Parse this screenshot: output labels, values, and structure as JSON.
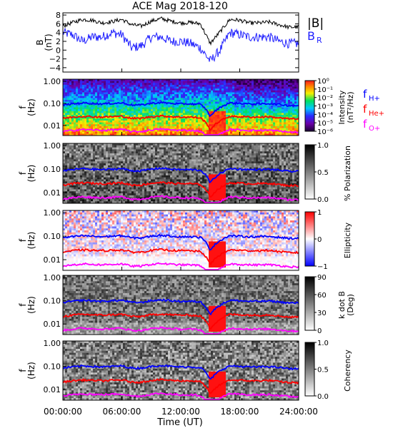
{
  "title": "ACE Mag 2018-120",
  "x_axis": {
    "label": "Time (UT)",
    "tick_labels": [
      "00:00:00",
      "06:00:00",
      "12:00:00",
      "18:00:00",
      "24:00:00"
    ],
    "range_hours": [
      0,
      24
    ]
  },
  "colors": {
    "B_total": "#000000",
    "B_R": "#1f1fff",
    "f_Hplus": "#0000ff",
    "f_Heplus": "#ff0000",
    "f_Oplus": "#ff00ff"
  },
  "panels": [
    {
      "id": "b-field",
      "ylabel_lines": [
        "B",
        "(nT)"
      ],
      "ylim": [
        -5,
        8.5
      ],
      "yticks": [
        "8",
        "6",
        "4",
        "2",
        "0",
        "−2",
        "−4"
      ],
      "legend": [
        {
          "text": "|B|",
          "color": "#000000"
        },
        {
          "text": "B",
          "sub": "R",
          "color": "#1f1fff"
        }
      ]
    },
    {
      "id": "intensity",
      "ylabel_lines": [
        "f",
        "(Hz)"
      ],
      "yticks": [
        "1.00",
        "0.10",
        "0.01"
      ],
      "colorbar_type": "rainbow",
      "colorbar_ticks": [
        "10⁰",
        "10⁻¹",
        "10⁻²",
        "10⁻³",
        "10⁻⁴",
        "10⁻⁵",
        "10⁻⁶"
      ],
      "colorbar_label_lines": [
        "Intensity",
        "(nT²/Hz)"
      ],
      "gyro_labels": [
        {
          "text": "f",
          "sub": "H+",
          "color": "#0000ff"
        },
        {
          "text": "f",
          "sub": "He+",
          "color": "#ff0000"
        },
        {
          "text": "f",
          "sub": "O+",
          "color": "#ff00ff"
        }
      ]
    },
    {
      "id": "polarization",
      "ylabel_lines": [
        "f",
        "(Hz)"
      ],
      "yticks": [
        "1.00",
        "0.10",
        "0.01"
      ],
      "colorbar_type": "gray",
      "colorbar_ticks": [
        "1.0",
        "0.5",
        "0.0"
      ],
      "colorbar_label_lines": [
        "% Polarization"
      ]
    },
    {
      "id": "ellipticity",
      "ylabel_lines": [
        "f",
        "(Hz)"
      ],
      "yticks": [
        "1.00",
        "0.10",
        "0.01"
      ],
      "colorbar_type": "bwr",
      "colorbar_ticks": [
        "1",
        "0",
        "−1"
      ],
      "colorbar_label_lines": [
        "Ellipticity"
      ]
    },
    {
      "id": "kdotb",
      "ylabel_lines": [
        "f",
        "(Hz)"
      ],
      "yticks": [
        "1.00",
        "0.10",
        "0.01"
      ],
      "colorbar_type": "gray",
      "colorbar_ticks": [
        "90",
        "60",
        "30",
        "0"
      ],
      "colorbar_label_lines": [
        "k dot B",
        "(Deg)"
      ]
    },
    {
      "id": "coherency",
      "ylabel_lines": [
        "f",
        "(Hz)"
      ],
      "yticks": [
        "1.00",
        "0.10",
        "0.01"
      ],
      "colorbar_type": "gray",
      "colorbar_ticks": [
        "1.0",
        "0.5",
        "0.0"
      ],
      "colorbar_label_lines": [
        "Coherency"
      ]
    }
  ],
  "chart_data": {
    "type": "line",
    "title": "ACE Mag 2018-120",
    "xlabel": "Time (UT)",
    "xlim_hours": [
      0,
      24
    ],
    "series": [
      {
        "name": "|B|",
        "unit": "nT",
        "x_hours": [
          0,
          1,
          2,
          3,
          4,
          5,
          6,
          7,
          8,
          9,
          10,
          11,
          12,
          13,
          14,
          15,
          16,
          17,
          18,
          19,
          20,
          21,
          22,
          23,
          24
        ],
        "values": [
          5.5,
          6.3,
          7.0,
          6.8,
          6.2,
          6.5,
          7.0,
          5.8,
          5.5,
          6.6,
          7.2,
          6.6,
          6.2,
          6.3,
          6.0,
          1.5,
          4.2,
          7.0,
          6.8,
          6.2,
          6.2,
          6.4,
          5.8,
          5.2,
          5.3
        ]
      },
      {
        "name": "B_R",
        "unit": "nT",
        "x_hours": [
          0,
          1,
          2,
          3,
          4,
          5,
          6,
          7,
          8,
          9,
          10,
          11,
          12,
          13,
          14,
          15,
          16,
          17,
          18,
          19,
          20,
          21,
          22,
          23,
          24
        ],
        "values": [
          4.0,
          3.5,
          2.0,
          3.0,
          3.0,
          4.0,
          3.5,
          0.5,
          1.0,
          3.0,
          3.0,
          2.0,
          2.0,
          1.5,
          0.5,
          -2.5,
          0.0,
          4.0,
          3.5,
          3.0,
          3.0,
          3.0,
          2.0,
          1.5,
          1.5
        ]
      },
      {
        "name": "f_H+",
        "unit": "Hz",
        "x_hours": [
          0,
          1,
          2,
          3,
          4,
          5,
          6,
          7,
          8,
          9,
          10,
          11,
          12,
          13,
          14,
          15,
          16,
          17,
          18,
          19,
          20,
          21,
          22,
          23,
          24
        ],
        "values": [
          0.085,
          0.095,
          0.105,
          0.1,
          0.095,
          0.1,
          0.105,
          0.085,
          0.085,
          0.1,
          0.11,
          0.1,
          0.095,
          0.095,
          0.09,
          0.025,
          0.065,
          0.105,
          0.1,
          0.095,
          0.095,
          0.098,
          0.09,
          0.08,
          0.08
        ]
      },
      {
        "name": "f_He+",
        "unit": "Hz",
        "x_hours": [
          0,
          1,
          2,
          3,
          4,
          5,
          6,
          7,
          8,
          9,
          10,
          11,
          12,
          13,
          14,
          15,
          16,
          17,
          18,
          19,
          20,
          21,
          22,
          23,
          24
        ],
        "values": [
          0.021,
          0.024,
          0.026,
          0.025,
          0.024,
          0.025,
          0.026,
          0.021,
          0.021,
          0.025,
          0.027,
          0.025,
          0.024,
          0.024,
          0.022,
          0.006,
          0.016,
          0.026,
          0.025,
          0.024,
          0.024,
          0.025,
          0.022,
          0.02,
          0.02
        ]
      },
      {
        "name": "f_O+",
        "unit": "Hz",
        "x_hours": [
          0,
          1,
          2,
          3,
          4,
          5,
          6,
          7,
          8,
          9,
          10,
          11,
          12,
          13,
          14,
          15,
          16,
          17,
          18,
          19,
          20,
          21,
          22,
          23,
          24
        ],
        "values": [
          0.0053,
          0.006,
          0.0066,
          0.0063,
          0.006,
          0.0063,
          0.0066,
          0.0053,
          0.0053,
          0.0063,
          0.0069,
          0.0063,
          0.006,
          0.006,
          0.0056,
          0.0015,
          0.0041,
          0.0066,
          0.0063,
          0.006,
          0.006,
          0.0061,
          0.0056,
          0.005,
          0.005
        ]
      }
    ]
  }
}
